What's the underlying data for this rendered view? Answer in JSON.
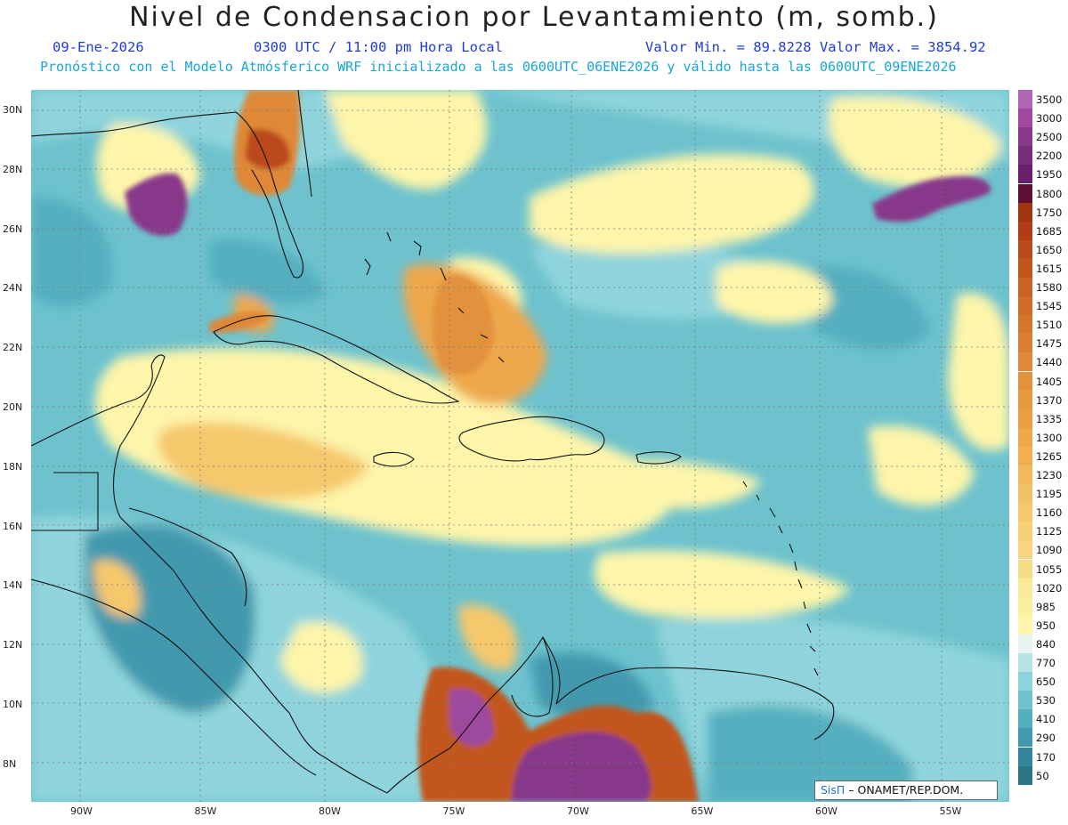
{
  "header": {
    "title": "Nivel de Condensacion por Levantamiento (m, somb.)",
    "date": "09-Ene-2026",
    "time": "0300 UTC / 11:00 pm Hora Local",
    "minmax": "Valor Min. = 89.8228  Valor Max. = 3854.92",
    "forecast": "Pronóstico con el Modelo Atmósferico WRF inicializado a las 0600UTC_06ENE2026 y válido hasta las  0600UTC_09ENE2026"
  },
  "axes": {
    "lat_labels": [
      "30N",
      "28N",
      "26N",
      "24N",
      "22N",
      "20N",
      "18N",
      "16N",
      "14N",
      "12N",
      "10N",
      "8N"
    ],
    "lon_labels": [
      "90W",
      "85W",
      "80W",
      "75W",
      "70W",
      "65W",
      "60W",
      "55W"
    ],
    "lat_values": [
      30,
      28,
      26,
      24,
      22,
      20,
      18,
      16,
      14,
      12,
      10,
      8
    ],
    "lon_values": [
      -90,
      -85,
      -80,
      -75,
      -70,
      -65,
      -60,
      -55
    ]
  },
  "legend": {
    "labels": [
      "3500",
      "3000",
      "2500",
      "2200",
      "1950",
      "1800",
      "1750",
      "1685",
      "1650",
      "1615",
      "1580",
      "1545",
      "1510",
      "1475",
      "1440",
      "1405",
      "1370",
      "1335",
      "1300",
      "1265",
      "1230",
      "1195",
      "1160",
      "1125",
      "1090",
      "1055",
      "1020",
      "985",
      "950",
      "840",
      "770",
      "650",
      "530",
      "410",
      "290",
      "170",
      "50"
    ],
    "colors": [
      "#b164b4",
      "#9d4a9e",
      "#88378a",
      "#782c7a",
      "#661f68",
      "#5a0f33",
      "#a13512",
      "#b03d16",
      "#bb4a1b",
      "#c3561f",
      "#ca6324",
      "#d06c28",
      "#d6762b",
      "#da7f31",
      "#de8838",
      "#e2913d",
      "#e69b41",
      "#ea9f45",
      "#eea74b",
      "#f0b052",
      "#f2b85c",
      "#f4c064",
      "#f6c86c",
      "#f7cf77",
      "#f8d67f",
      "#f9dc87",
      "#faea97",
      "#fbef9f",
      "#fdf5aa",
      "#e6f4f2",
      "#b5e3e6",
      "#8fd4dc",
      "#6dc2ce",
      "#55afbf",
      "#4399ad",
      "#35869d",
      "#2c7587"
    ]
  },
  "credit": {
    "brand": "SisΠ",
    "text": "– ONAMET/REP.DOM."
  }
}
